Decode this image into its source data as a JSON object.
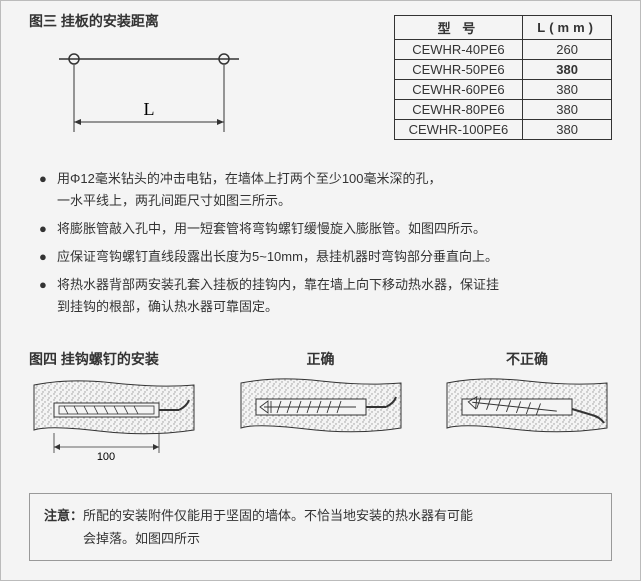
{
  "fig3": {
    "title": "图三  挂板的安装距离",
    "L_label": "L"
  },
  "table": {
    "headers": [
      "型  号",
      "L(mm)"
    ],
    "rows": [
      {
        "model": "CEWHR-40PE6",
        "L": "260",
        "bold": false
      },
      {
        "model": "CEWHR-50PE6",
        "L": "380",
        "bold": true
      },
      {
        "model": "CEWHR-60PE6",
        "L": "380",
        "bold": false
      },
      {
        "model": "CEWHR-80PE6",
        "L": "380",
        "bold": false
      },
      {
        "model": "CEWHR-100PE6",
        "L": "380",
        "bold": false
      }
    ]
  },
  "bullets": [
    {
      "text": "用Φ12毫米钻头的冲击电钻，在墙体上打两个至少100毫米深的孔，",
      "continuation": "一水平线上，两孔间距尺寸如图三所示。"
    },
    {
      "text": "将膨胀管敲入孔中，用一短套管将弯钩螺钉缓慢旋入膨胀管。如图四所示。"
    },
    {
      "text": "应保证弯钩螺钉直线段露出长度为5~10mm，悬挂机器时弯钩部分垂直向上。"
    },
    {
      "text": "将热水器背部两安装孔套入挂板的挂钩内，靠在墙上向下移动热水器，保证挂",
      "continuation": "到挂钩的根部，确认热水器可靠固定。"
    }
  ],
  "fig4": {
    "title": "图四  挂钩螺钉的安装",
    "correct_label": "正确",
    "incorrect_label": "不正确",
    "dim_label": "100"
  },
  "notice": {
    "label": "注意：",
    "text1": "所配的安装附件仅能用于坚固的墙体。不恰当地安装的热水器有可能",
    "text2": "会掉落。如图四所示"
  },
  "styling": {
    "page_bg": "#f4f4f4",
    "text_color": "#333333",
    "line_color": "#333333",
    "wall_texture_color": "#cccccc",
    "font_size_body": 13,
    "font_size_label": 14
  }
}
